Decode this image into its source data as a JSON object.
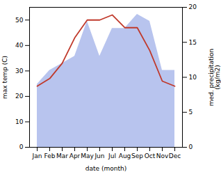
{
  "chart_data": {
    "type": "line",
    "categories": [
      "Jan",
      "Feb",
      "Mar",
      "Apr",
      "May",
      "Jun",
      "Jul",
      "Aug",
      "Sep",
      "Oct",
      "Nov",
      "Dec"
    ],
    "series": [
      {
        "type": "area",
        "axis": "y2",
        "color": "#b8c4ee",
        "values": [
          9,
          11,
          12,
          13,
          18,
          13,
          17,
          17,
          19,
          18,
          11,
          11
        ]
      },
      {
        "type": "line",
        "color": "#c0392b",
        "values": [
          24,
          27,
          33,
          43,
          50,
          50,
          52,
          47,
          47,
          38,
          26,
          24
        ]
      }
    ],
    "xlabel": "date (month)",
    "ylabel": "max temp (C)",
    "y2label": "med. precipitation\n(kg/m2)",
    "ylim": [
      0,
      55
    ],
    "yticks": [
      0,
      10,
      20,
      30,
      40,
      50
    ],
    "y2lim": [
      0,
      20
    ],
    "y2ticks": [
      0,
      5,
      10,
      15,
      20
    ]
  }
}
